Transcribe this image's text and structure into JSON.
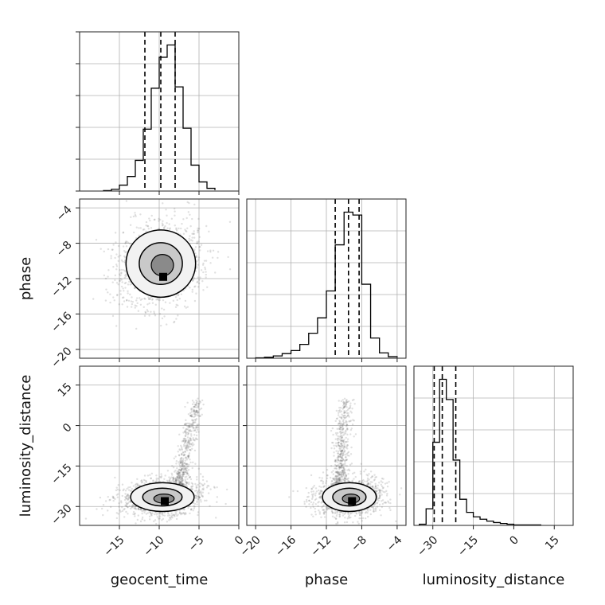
{
  "chart_data": {
    "type": "corner",
    "parameters": [
      {
        "name": "geocent_time",
        "axis_label": "geocent_time",
        "range": [
          -20,
          0
        ],
        "ticks": [
          -15,
          -10,
          -5,
          0
        ],
        "tick_labels": [
          "−15",
          "−10",
          "−5",
          "0"
        ],
        "quantiles": [
          -11.8,
          -9.8,
          -8.0
        ],
        "histogram": {
          "bin_edges": [
            -17,
            -16,
            -15,
            -14,
            -13,
            -12,
            -11,
            -10,
            -9,
            -8,
            -7,
            -6,
            -5,
            -4,
            -3
          ],
          "counts": [
            2,
            8,
            26,
            64,
            135,
            272,
            452,
            588,
            642,
            458,
            276,
            114,
            40,
            12,
            4
          ]
        }
      },
      {
        "name": "phase",
        "axis_label": "phase",
        "range": [
          -21,
          -3
        ],
        "ticks": [
          -20,
          -16,
          -12,
          -8,
          -4
        ],
        "tick_labels": [
          "−20",
          "−16",
          "−12",
          "−8",
          "−4"
        ],
        "quantiles": [
          -11.0,
          -9.5,
          -8.3
        ],
        "histogram": {
          "bin_edges": [
            -20,
            -19,
            -18,
            -17,
            -16,
            -15,
            -14,
            -13,
            -12,
            -11,
            -10,
            -9,
            -8,
            -7,
            -6,
            -5,
            -4
          ],
          "counts": [
            2,
            5,
            12,
            24,
            40,
            72,
            130,
            210,
            350,
            590,
            760,
            745,
            385,
            105,
            28,
            8,
            3
          ]
        }
      },
      {
        "name": "luminosity_distance",
        "axis_label": "luminosity_distance",
        "range": [
          -37,
          22
        ],
        "ticks": [
          -30,
          -15,
          0,
          15
        ],
        "tick_labels": [
          "−30",
          "−15",
          "0",
          "15"
        ],
        "quantiles": [
          -29.5,
          -26.5,
          -21.5
        ],
        "histogram": {
          "bin_edges": [
            -35,
            -32.5,
            -30,
            -27.5,
            -25,
            -22.5,
            -20,
            -17.5,
            -15,
            -12.5,
            -10,
            -7.5,
            -5,
            -2.5,
            0,
            10
          ],
          "counts": [
            5,
            70,
            350,
            615,
            530,
            275,
            110,
            55,
            36,
            26,
            18,
            12,
            8,
            5,
            2
          ]
        }
      }
    ],
    "pair_plots": [
      {
        "x": "geocent_time",
        "y": "phase",
        "peak": [
          -9.5,
          -9.8
        ],
        "contours": "2 levels (1σ, 2σ) with shaded density and scattered samples"
      },
      {
        "x": "geocent_time",
        "y": "luminosity_distance",
        "peak": [
          -9.5,
          -28.5
        ],
        "contours": "2 levels with tail of samples toward x≈-6, y up to 10"
      },
      {
        "x": "phase",
        "y": "luminosity_distance",
        "peak": [
          -9.2,
          -28.5
        ],
        "contours": "2 levels with tail of samples toward x≈-10, y up to 10"
      }
    ],
    "grid": true,
    "colors": {
      "line": "#000000",
      "grid": "#b0b0b0",
      "scatter": "#555555"
    }
  }
}
